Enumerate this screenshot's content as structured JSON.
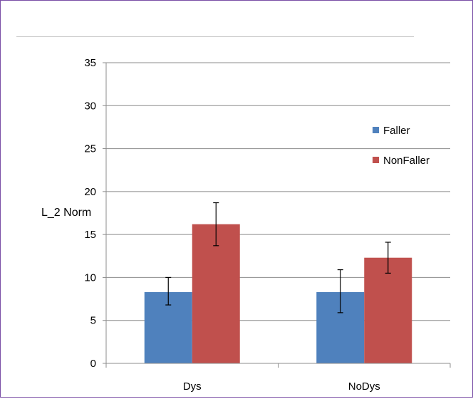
{
  "chart_data": {
    "type": "bar",
    "title": "",
    "xlabel": "",
    "ylabel": "L_2 Norm",
    "ylim": [
      0,
      35
    ],
    "yticks": [
      0,
      5,
      10,
      15,
      20,
      25,
      30,
      35
    ],
    "grid": true,
    "legend_position": "right",
    "categories": [
      "Dys",
      "NoDys"
    ],
    "series": [
      {
        "name": "Faller",
        "color": "#4f81bd",
        "values": [
          8.3,
          8.3
        ],
        "error_low": [
          6.8,
          5.9
        ],
        "error_high": [
          10.0,
          10.9
        ]
      },
      {
        "name": "NonFaller",
        "color": "#c0504d",
        "values": [
          16.2,
          12.3
        ],
        "error_low": [
          13.7,
          10.5
        ],
        "error_high": [
          18.7,
          14.1
        ]
      }
    ]
  }
}
